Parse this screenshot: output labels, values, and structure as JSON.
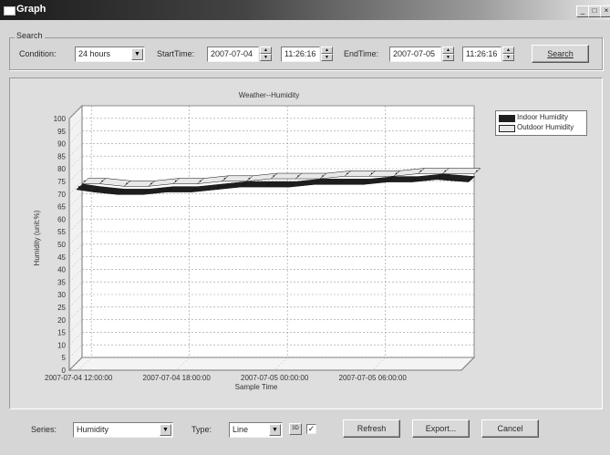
{
  "window": {
    "title": "Graph",
    "min_label": "_",
    "max_label": "□",
    "close_label": "×"
  },
  "search": {
    "group_label": "Search",
    "condition_label": "Condition:",
    "condition_value": "24 hours",
    "start_label": "StartTime:",
    "start_date": "2007-07-04",
    "start_time": "11:26:16",
    "end_label": "EndTime:",
    "end_date": "2007-07-05",
    "end_time": "11:26:16",
    "search_button": "Search"
  },
  "controls": {
    "series_label": "Series:",
    "series_value": "Humidity",
    "type_label": "Type:",
    "type_value": "Line",
    "three_d_label": "3D",
    "three_d_checked": "✓",
    "refresh_button": "Refresh",
    "export_button": "Export...",
    "cancel_button": "Cancel"
  },
  "icons": {
    "dropdown": "chevron-down-icon",
    "spin_up": "spin-up-icon",
    "spin_down": "spin-down-icon",
    "window": "window-icon"
  },
  "colors": {
    "indoor": "#1e1e1e",
    "outdoor": "#e8e8e8",
    "panel": "#dedede"
  },
  "chart_data": {
    "type": "line",
    "title": "Weather--Humidity",
    "xlabel": "Sample Time",
    "ylabel": "Humidity (unit:%)",
    "ylim": [
      0,
      100
    ],
    "yticks": [
      "0",
      "5",
      "10",
      "15",
      "20",
      "25",
      "30",
      "35",
      "40",
      "45",
      "50",
      "55",
      "60",
      "65",
      "70",
      "75",
      "80",
      "85",
      "90",
      "95",
      "100"
    ],
    "xticks": [
      "2007-07-04 12:00:00",
      "2007-07-04 18:00:00",
      "2007-07-05 00:00:00",
      "2007-07-05 06:00:00"
    ],
    "grid": true,
    "three_d": true,
    "legend_position": "top-right",
    "series": [
      {
        "name": "Indoor Humidity",
        "x": [
          "2007-07-04 11:26",
          "2007-07-04 12:30",
          "2007-07-04 14:00",
          "2007-07-04 15:30",
          "2007-07-04 17:00",
          "2007-07-04 18:30",
          "2007-07-04 20:00",
          "2007-07-04 21:30",
          "2007-07-04 23:00",
          "2007-07-05 00:30",
          "2007-07-05 02:00",
          "2007-07-05 03:30",
          "2007-07-05 05:00",
          "2007-07-05 06:30",
          "2007-07-05 08:00",
          "2007-07-05 09:30",
          "2007-07-05 11:26"
        ],
        "values": [
          69,
          68,
          67,
          67,
          68,
          68,
          69,
          70,
          70,
          70,
          71,
          71,
          71,
          72,
          72,
          73,
          72
        ]
      },
      {
        "name": "Outdoor Humidity",
        "x": [
          "2007-07-04 11:26",
          "2007-07-04 12:30",
          "2007-07-04 14:00",
          "2007-07-04 15:30",
          "2007-07-04 17:00",
          "2007-07-04 18:30",
          "2007-07-04 20:00",
          "2007-07-04 21:30",
          "2007-07-04 23:00",
          "2007-07-05 00:30",
          "2007-07-05 02:00",
          "2007-07-05 03:30",
          "2007-07-05 05:00",
          "2007-07-05 06:30",
          "2007-07-05 08:00",
          "2007-07-05 09:30",
          "2007-07-05 11:26"
        ],
        "values": [
          69,
          69,
          68,
          68,
          69,
          69,
          70,
          70,
          71,
          71,
          71,
          72,
          72,
          72,
          73,
          73,
          73
        ]
      }
    ]
  }
}
